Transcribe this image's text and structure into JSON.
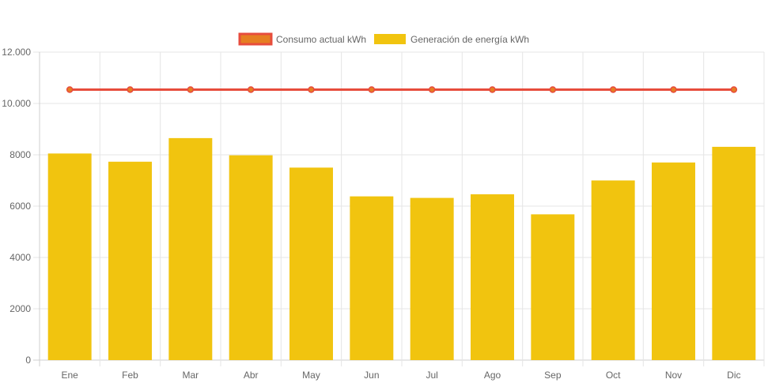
{
  "colors": {
    "bar": "#f1c40f",
    "line": "#e74c3c",
    "point_fill": "#e67e22",
    "grid": "#e5e5e5",
    "axis": "#cfcfcf",
    "text": "#666666"
  },
  "legend": [
    {
      "label": "Consumo actual kWh",
      "kind": "line"
    },
    {
      "label": "Generación de energía kWh",
      "kind": "bar"
    }
  ],
  "chart_data": {
    "type": "bar",
    "categories": [
      "Ene",
      "Feb",
      "Mar",
      "Abr",
      "May",
      "Jun",
      "Jul",
      "Ago",
      "Sep",
      "Oct",
      "Nov",
      "Dic"
    ],
    "series": [
      {
        "name": "Generación de energía kWh",
        "type": "bar",
        "values": [
          8050,
          7730,
          8650,
          7980,
          7500,
          6380,
          6320,
          6460,
          5680,
          7000,
          7700,
          8310
        ]
      },
      {
        "name": "Consumo actual kWh",
        "type": "line",
        "values": [
          10540,
          10540,
          10540,
          10540,
          10540,
          10540,
          10540,
          10540,
          10540,
          10540,
          10540,
          10540
        ]
      }
    ],
    "ylim": [
      0,
      12000
    ],
    "yticks": [
      0,
      2000,
      4000,
      6000,
      8000,
      10000,
      12000
    ],
    "ytick_labels": [
      "0",
      "2000",
      "4000",
      "6000",
      "8000",
      "10.000",
      "12.000"
    ],
    "grid": true,
    "legend_position": "top-center"
  }
}
